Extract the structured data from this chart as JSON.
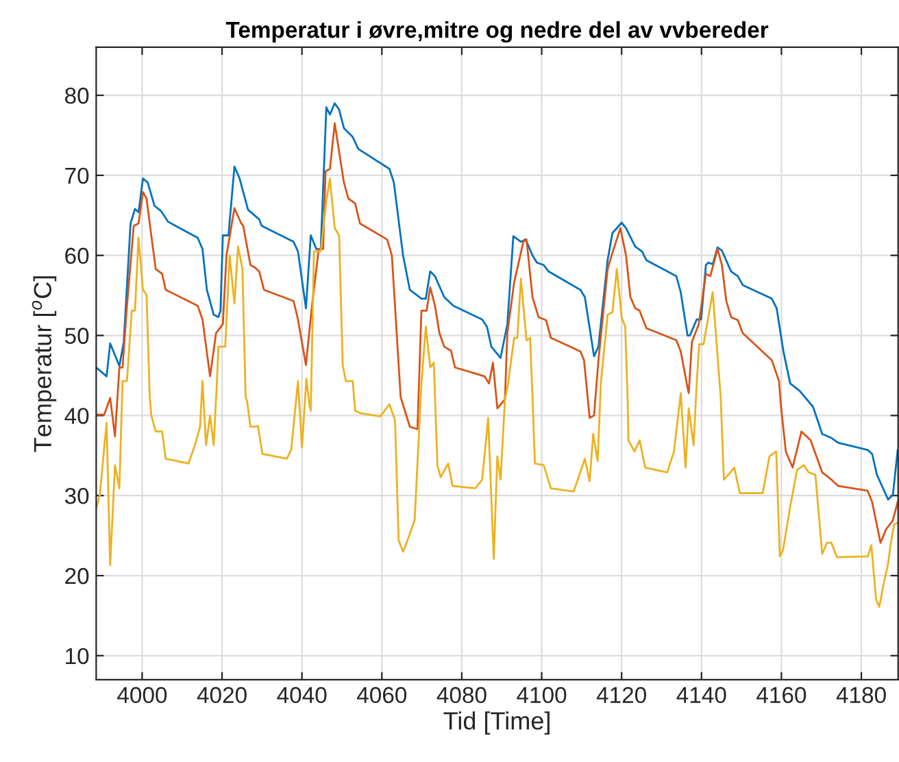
{
  "chart_data": {
    "type": "line",
    "title": "Temperatur i øvre,mitre og nedre del av vvbereder",
    "xlabel": "Tid [Time]",
    "ylabel": "Temperatur [$^{o}$C]",
    "xlim": [
      3988.5,
      4189.2
    ],
    "ylim": [
      7,
      86
    ],
    "xticks": [
      4000,
      4020,
      4040,
      4060,
      4080,
      4100,
      4120,
      4140,
      4160,
      4180
    ],
    "yticks": [
      10,
      20,
      30,
      40,
      50,
      60,
      70,
      80
    ],
    "grid": true,
    "line_style": "solid",
    "series": [
      {
        "color": "#0072bd",
        "x": [
          3988.5,
          3991.1,
          3992,
          3994.3,
          3995.4,
          3997.1,
          3998.2,
          3999.1,
          4000.2,
          4001.4,
          4003.1,
          4004.8,
          4006.5,
          4013.9,
          4015.1,
          4016.2,
          4017.9,
          4019.1,
          4019.6,
          4020.2,
          4021.6,
          4023.1,
          4024.4,
          4026.5,
          4029.3,
          4029.9,
          4037.9,
          4039.0,
          4041.0,
          4042.2,
          4043.6,
          4044.7,
          4046.1,
          4047.0,
          4048.2,
          4049.3,
          4050.5,
          4052.7,
          4054.1,
          4061.9,
          4063.0,
          4065.3,
          4067.0,
          4069.9,
          4071.0,
          4072.1,
          4073.3,
          4075.6,
          4077.9,
          4085.1,
          4086.3,
          4087.4,
          4089.7,
          4091.4,
          4092.9,
          4094.8,
          4096.0,
          4097.7,
          4098.8,
          4100.5,
          4101.7,
          4109.7,
          4110.8,
          4113.1,
          4114.2,
          4116.5,
          4117.7,
          4118.8,
          4120.0,
          4121.1,
          4123.4,
          4125.1,
          4126.2,
          4133.7,
          4134.8,
          4136.5,
          4137.1,
          4138.8,
          4139.9,
          4141.1,
          4141.7,
          4142.8,
          4144.0,
          4145.1,
          4147.4,
          4149.1,
          4150.3,
          4157.6,
          4158.8,
          4160.5,
          4162.2,
          4164.5,
          4167.9,
          4170.2,
          4172.5,
          4174.2,
          4181.6,
          4182.7,
          4183.9,
          4186.7,
          4187.9,
          4189.1
        ],
        "values": [
          46.0,
          44.9,
          49.0,
          46.2,
          49.2,
          64.0,
          65.8,
          65.4,
          69.6,
          69.1,
          66.2,
          65.5,
          64.2,
          62.2,
          60.8,
          55.7,
          52.6,
          52.3,
          53.1,
          62.5,
          62.5,
          71.1,
          69.6,
          65.7,
          64.5,
          63.7,
          61.7,
          60.5,
          53.4,
          62.5,
          60.8,
          60.8,
          78.5,
          77.6,
          79.0,
          78.2,
          75.9,
          74.8,
          73.3,
          70.8,
          69.1,
          60.0,
          55.7,
          54.6,
          54.6,
          58.0,
          57.4,
          54.8,
          53.7,
          52.0,
          51.1,
          48.6,
          47.2,
          51.4,
          62.4,
          61.7,
          62.0,
          60.0,
          59.1,
          58.8,
          58.0,
          55.7,
          54.8,
          47.4,
          48.6,
          59.4,
          62.8,
          63.4,
          64.1,
          63.4,
          61.1,
          60.5,
          59.4,
          57.4,
          55.4,
          50.0,
          50.0,
          52.0,
          52.0,
          58.8,
          59.1,
          58.9,
          61.0,
          60.6,
          58.0,
          57.4,
          56.3,
          54.6,
          53.4,
          48.0,
          44.0,
          43.1,
          41.1,
          37.7,
          37.2,
          36.6,
          35.7,
          35.2,
          32.6,
          29.5,
          30.1,
          35.7
        ]
      },
      {
        "color": "#d95319",
        "x": [
          3988.5,
          3990.5,
          3992,
          3993.2,
          3994.3,
          3995.1,
          3996.2,
          3997.9,
          3999.1,
          4000.2,
          4001.1,
          4002.5,
          4003.4,
          4005.0,
          4005.9,
          4013.9,
          4015.1,
          4017.0,
          4018.5,
          4020.2,
          4021.1,
          4023.1,
          4024.8,
          4025.3,
          4027.1,
          4028.2,
          4029.3,
          4030.5,
          4037.9,
          4039.0,
          4041.0,
          4042.5,
          4044.2,
          4045.3,
          4045.9,
          4047.0,
          4048.2,
          4050.5,
          4051.6,
          4053.3,
          4054.5,
          4061.3,
          4062.5,
          4064.7,
          4067.0,
          4068.9,
          4069.9,
          4071.2,
          4072.1,
          4073.3,
          4074.4,
          4075.6,
          4077.3,
          4078.3,
          4085.7,
          4086.8,
          4087.8,
          4088.9,
          4090.8,
          4091.4,
          4093.1,
          4095.4,
          4096.2,
          4097.7,
          4099.2,
          4101.1,
          4102.3,
          4109.7,
          4110.6,
          4112.0,
          4113.1,
          4114.2,
          4116.5,
          4117.7,
          4119.7,
          4121.1,
          4122.2,
          4123.4,
          4124.5,
          4126.2,
          4133.7,
          4134.8,
          4136.5,
          4136.8,
          4137.6,
          4139.3,
          4141.1,
          4142.2,
          4144.0,
          4145.1,
          4146.2,
          4147.4,
          4149.1,
          4150.3,
          4157.6,
          4159.4,
          4159.9,
          4161.1,
          4162.8,
          4165.0,
          4167.3,
          4170.2,
          4172.5,
          4174.2,
          4181.6,
          4182.7,
          4184.8,
          4186.2,
          4187.9,
          4189.1
        ],
        "values": [
          40.1,
          40.1,
          42.2,
          37.4,
          46.0,
          46.0,
          53.7,
          63.7,
          64.0,
          67.9,
          67.1,
          61.7,
          58.3,
          57.7,
          55.7,
          53.7,
          52.0,
          44.9,
          50.3,
          51.4,
          60.0,
          65.9,
          64.0,
          63.7,
          58.8,
          58.5,
          58.0,
          55.7,
          54.3,
          52.0,
          46.3,
          53.7,
          60.8,
          60.8,
          70.5,
          70.8,
          76.5,
          69.1,
          67.1,
          66.5,
          64.0,
          62.0,
          60.0,
          42.3,
          38.6,
          38.3,
          53.1,
          53.1,
          56.0,
          53.7,
          50.3,
          48.6,
          48.1,
          46.0,
          44.9,
          44.0,
          46.6,
          40.9,
          42.0,
          50.3,
          56.6,
          61.7,
          62.0,
          54.8,
          52.3,
          51.9,
          49.7,
          48.0,
          46.9,
          39.7,
          40.0,
          46.9,
          58.3,
          60.3,
          63.4,
          60.0,
          54.8,
          53.4,
          53.1,
          50.9,
          49.4,
          48.0,
          43.5,
          42.8,
          49.2,
          51.4,
          57.7,
          57.4,
          60.8,
          58.8,
          54.3,
          52.3,
          51.9,
          50.3,
          46.9,
          44.3,
          41.1,
          35.5,
          33.5,
          38.0,
          36.9,
          32.9,
          32.0,
          31.2,
          30.6,
          29.2,
          24.1,
          25.8,
          26.9,
          29.2
        ]
      },
      {
        "color": "#edb120",
        "x": [
          3988.5,
          3989.4,
          3991.1,
          3992,
          3993.2,
          3994.3,
          3995.1,
          3996.2,
          3997.4,
          3998.2,
          3999.1,
          4000.2,
          4001.1,
          4001.9,
          4002.3,
          4003.4,
          4005.0,
          4005.9,
          4011.6,
          4013.4,
          4014.5,
          4015.1,
          4016.0,
          4017.0,
          4017.9,
          4018.7,
          4019.1,
          4020.8,
          4021.9,
          4023.1,
          4024.0,
          4025.1,
          4025.9,
          4026.3,
          4027.1,
          4028.2,
          4029.0,
          4030.1,
          4036.2,
          4037.3,
          4039.0,
          4040.0,
          4041.1,
          4041.9,
          4042.2,
          4043.0,
          4044.7,
          4046.1,
          4047.0,
          4048.2,
          4049.3,
          4050.2,
          4051.0,
          4052.7,
          4053.3,
          4054.5,
          4059.6,
          4061.9,
          4063.3,
          4064.2,
          4065.3,
          4066.4,
          4068.2,
          4069.9,
          4071.0,
          4072.1,
          4073.0,
          4073.9,
          4074.7,
          4076.6,
          4077.7,
          4083.4,
          4085.1,
          4086.6,
          4088.0,
          4088.9,
          4089.7,
          4090.8,
          4091.6,
          4093.1,
          4093.9,
          4094.8,
          4096.2,
          4097.1,
          4097.7,
          4098.3,
          4100.5,
          4102.3,
          4108.0,
          4110.8,
          4112.0,
          4112.9,
          4114.0,
          4114.8,
          4116.5,
          4117.7,
          4118.8,
          4120.0,
          4120.9,
          4121.5,
          4121.7,
          4123.2,
          4124.5,
          4125.9,
          4131.4,
          4133.1,
          4134.8,
          4136.0,
          4136.8,
          4138.0,
          4138.8,
          4139.4,
          4140.5,
          4142.8,
          4144.8,
          4145.6,
          4146.7,
          4148.2,
          4149.6,
          4155.3,
          4157.0,
          4158.7,
          4159.6,
          4160.4,
          4162.2,
          4163.9,
          4165.6,
          4166.8,
          4168.5,
          4170.2,
          4171.4,
          4172.5,
          4173.9,
          4181.6,
          4182.5,
          4183.7,
          4184.5,
          4185.6,
          4186.7,
          4187.3,
          4188.2,
          4189.1
        ],
        "values": [
          28.4,
          30.1,
          39.1,
          21.3,
          33.8,
          30.9,
          44.3,
          44.3,
          53.1,
          53.1,
          62.2,
          55.7,
          55.1,
          42.3,
          40.0,
          38.0,
          38.0,
          34.6,
          34.0,
          36.6,
          38.6,
          44.3,
          36.3,
          40.0,
          36.3,
          44.0,
          48.6,
          48.6,
          60.0,
          54.0,
          61.1,
          58.3,
          42.3,
          41.7,
          38.6,
          38.6,
          38.7,
          35.2,
          34.6,
          35.7,
          44.3,
          36.0,
          44.6,
          41.2,
          40.6,
          60.5,
          60.5,
          66.8,
          69.6,
          63.4,
          62.5,
          46.3,
          44.3,
          44.3,
          40.6,
          40.3,
          39.9,
          41.4,
          39.4,
          24.4,
          23.0,
          24.4,
          26.9,
          44.0,
          51.1,
          46.0,
          46.6,
          33.8,
          32.3,
          34.0,
          31.2,
          30.9,
          32.0,
          39.7,
          22.1,
          34.9,
          32.0,
          42.0,
          44.0,
          49.7,
          49.7,
          57.1,
          49.4,
          49.7,
          42.3,
          34.0,
          33.8,
          30.9,
          30.5,
          34.6,
          31.8,
          37.7,
          34.3,
          44.0,
          52.6,
          52.9,
          58.3,
          52.3,
          51.1,
          42.3,
          36.9,
          35.5,
          36.9,
          33.5,
          32.9,
          35.5,
          42.8,
          33.5,
          40.9,
          36.3,
          44.0,
          48.9,
          48.9,
          55.4,
          42.3,
          32.0,
          32.6,
          33.5,
          30.3,
          30.3,
          34.9,
          35.5,
          22.4,
          23.2,
          28.6,
          33.2,
          33.8,
          32.9,
          32.6,
          22.7,
          24.1,
          24.1,
          22.3,
          22.4,
          23.8,
          17.0,
          16.1,
          19.0,
          21.5,
          23.8,
          26.4,
          26.6
        ]
      }
    ]
  }
}
